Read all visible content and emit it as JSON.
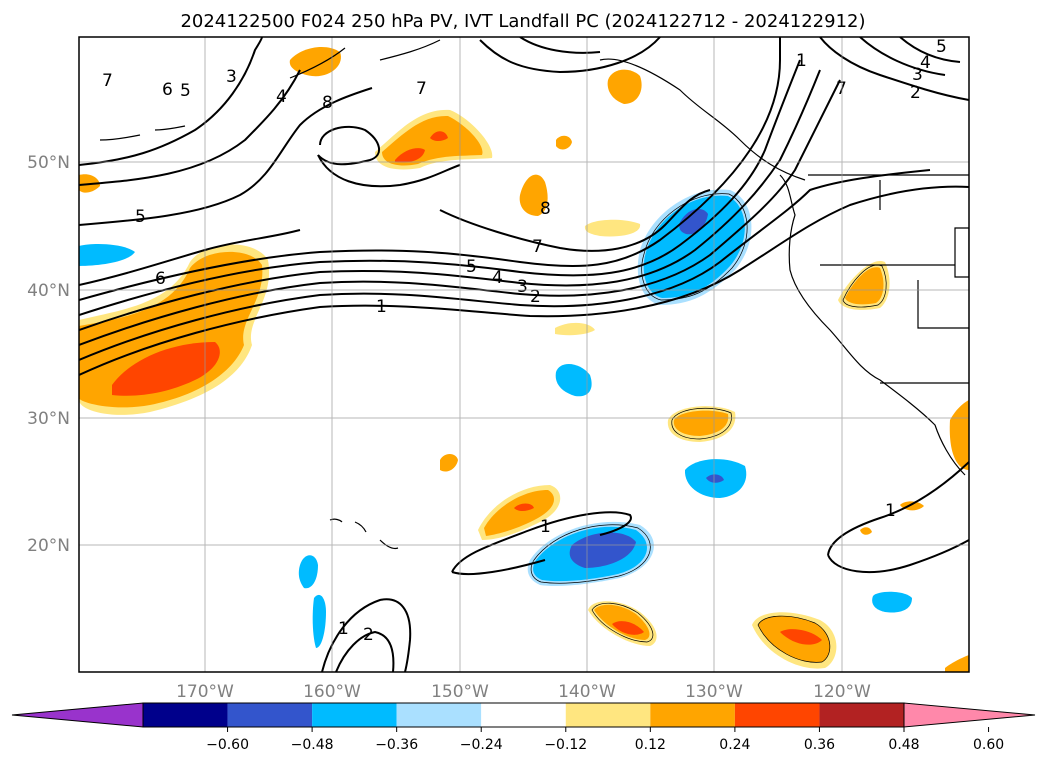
{
  "title": "2024122500 F024 250 hPa PV, IVT Landfall PC (2024122712 - 2024122912)",
  "map": {
    "lat_labels": [
      "50°N",
      "40°N",
      "30°N",
      "20°N"
    ],
    "lon_labels": [
      "170°W",
      "160°W",
      "150°W",
      "140°W",
      "130°W",
      "120°W"
    ]
  },
  "colorbar": {
    "ticks": [
      "−0.60",
      "−0.48",
      "−0.36",
      "−0.24",
      "−0.12",
      "0.12",
      "0.24",
      "0.36",
      "0.48",
      "0.60"
    ],
    "colors": [
      "#9933cc",
      "#00008b",
      "#3355cc",
      "#00bbff",
      "#aae0ff",
      "#ffffff",
      "#ffe680",
      "#ffa500",
      "#ff4500",
      "#b22222",
      "#ff88aa"
    ]
  },
  "contour_labels": [
    "7",
    "6",
    "5",
    "3",
    "4",
    "8",
    "7",
    "5",
    "4",
    "3",
    "2",
    "1",
    "7",
    "6",
    "5",
    "5",
    "4",
    "3",
    "2",
    "1",
    "7",
    "8",
    "1",
    "1",
    "2",
    "1"
  ]
}
